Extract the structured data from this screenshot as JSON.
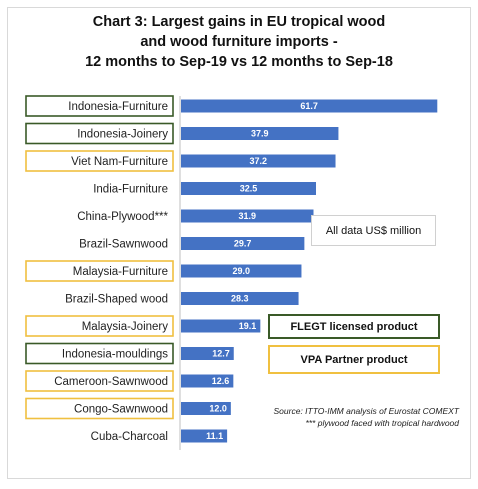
{
  "title_lines": [
    "Chart 3: Largest gains in EU tropical wood",
    "and wood furniture imports -",
    "12 months to Sep-19 vs 12 months to Sep-18"
  ],
  "units_note": "All data US$ million",
  "legend": {
    "flegt": "FLEGT licensed product",
    "vpa": "VPA Partner product"
  },
  "source_lines": [
    "Source: ITTO-IMM analysis of Eurostat COMEXT",
    "*** plywood faced with tropical hardwood"
  ],
  "colors": {
    "bar": "#4472c4",
    "flegt_border": "#3a5a28",
    "vpa_border": "#f0c040",
    "axis": "#bfbfbf"
  },
  "chart_data": {
    "type": "bar",
    "orientation": "horizontal",
    "categories": [
      "Indonesia-Furniture",
      "Indonesia-Joinery",
      "Viet Nam-Furniture",
      "India-Furniture",
      "China-Plywood***",
      "Brazil-Sawnwood",
      "Malaysia-Furniture",
      "Brazil-Shaped wood",
      "Malaysia-Joinery",
      "Indonesia-mouldings",
      "Cameroon-Sawnwood",
      "Congo-Sawnwood",
      "Cuba-Charcoal"
    ],
    "values": [
      61.7,
      37.9,
      37.2,
      32.5,
      31.9,
      29.7,
      29.0,
      28.3,
      19.1,
      12.7,
      12.6,
      12.0,
      11.1
    ],
    "highlight": [
      "flegt",
      "flegt",
      "vpa",
      null,
      null,
      null,
      "vpa",
      null,
      "vpa",
      "flegt",
      "vpa",
      "vpa",
      null
    ],
    "xlim": [
      0,
      65
    ],
    "title": "Chart 3: Largest gains in EU tropical wood and wood furniture imports - 12 months to Sep-19 vs 12 months to Sep-18"
  }
}
